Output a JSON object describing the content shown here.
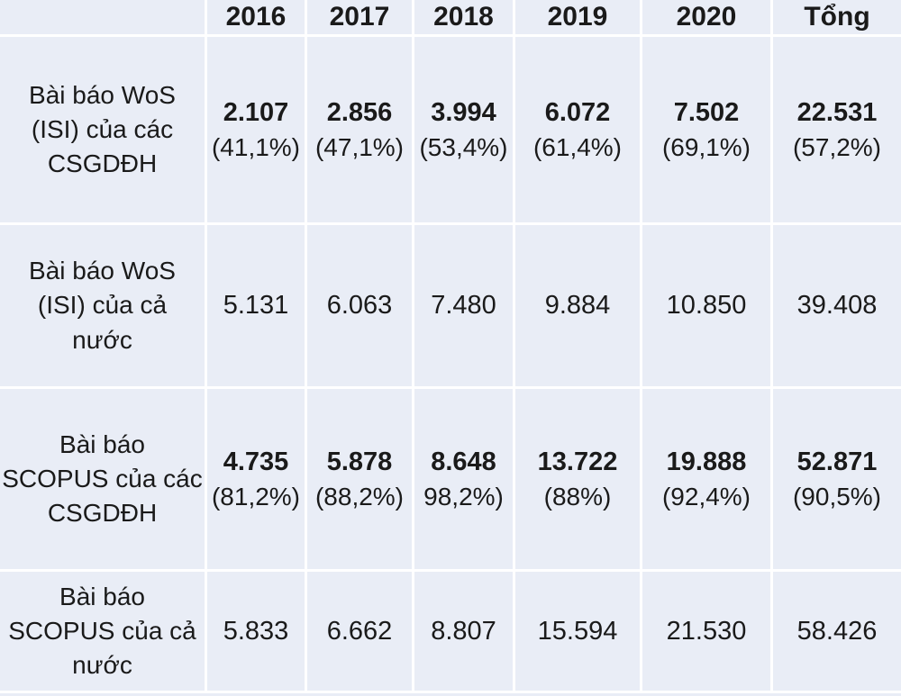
{
  "chart_data": {
    "type": "table",
    "columns": [
      "",
      "2016",
      "2017",
      "2018",
      "2019",
      "2020",
      "Tổng"
    ],
    "rows": [
      {
        "label": "Bài báo WoS (ISI) của các CSGDĐH",
        "label_lines": [
          "Bài báo WoS",
          "(ISI) của các",
          "CSGDĐH"
        ],
        "emphasis": "bold",
        "values": [
          "2.107",
          "2.856",
          "3.994",
          "6.072",
          "7.502",
          "22.531"
        ],
        "percents": [
          "(41,1%)",
          "(47,1%)",
          "(53,4%)",
          "(61,4%)",
          "(69,1%)",
          "(57,2%)"
        ]
      },
      {
        "label": "Bài báo WoS (ISI) của cả nước",
        "label_lines": [
          "Bài báo WoS",
          "(ISI) của cả",
          "nước"
        ],
        "emphasis": "regular",
        "values": [
          "5.131",
          "6.063",
          "7.480",
          "9.884",
          "10.850",
          "39.408"
        ],
        "percents": []
      },
      {
        "label": "Bài báo SCOPUS của các CSGDĐH",
        "label_lines": [
          "Bài báo",
          "SCOPUS của các",
          "CSGDĐH"
        ],
        "emphasis": "bold",
        "values": [
          "4.735",
          "5.878",
          "8.648",
          "13.722",
          "19.888",
          "52.871"
        ],
        "percents": [
          "(81,2%)",
          "(88,2%)",
          "98,2%)",
          "(88%)",
          "(92,4%)",
          "(90,5%)"
        ]
      },
      {
        "label": "Bài báo SCOPUS của cả nước",
        "label_lines": [
          "Bài báo",
          "SCOPUS của cả",
          "nước"
        ],
        "emphasis": "regular",
        "values": [
          "5.833",
          "6.662",
          "8.807",
          "15.594",
          "21.530",
          "58.426"
        ],
        "percents": []
      }
    ]
  },
  "colors": {
    "cell_bg": "#e9edf6",
    "grid_line": "#ffffff",
    "text": "#1a1a1a"
  }
}
